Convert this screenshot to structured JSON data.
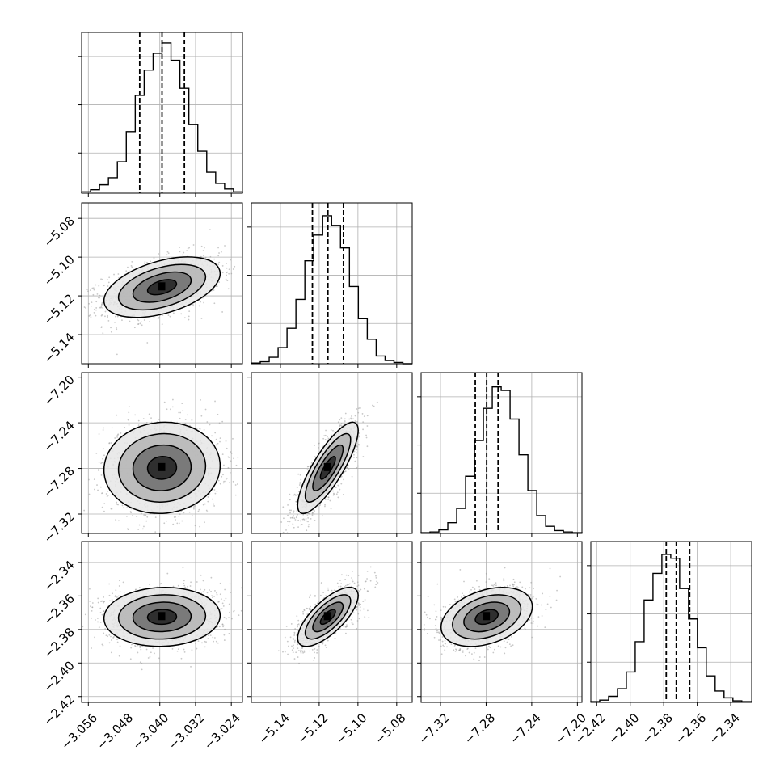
{
  "chart_data": {
    "type": "corner",
    "parameters": [
      {
        "index": 0,
        "range": [
          -3.0575,
          -3.0215
        ],
        "ticks": [
          -3.056,
          -3.048,
          -3.04,
          -3.032,
          -3.024
        ],
        "tick_labels": [
          "−3.056",
          "−3.048",
          "−3.040",
          "−3.032",
          "−3.024"
        ],
        "quantiles": [
          -3.0445,
          -3.0395,
          -3.0345
        ],
        "hist_bin_edges": [
          -3.0575,
          -3.0555,
          -3.0535,
          -3.0515,
          -3.0495,
          -3.0475,
          -3.0455,
          -3.0435,
          -3.0415,
          -3.0395,
          -3.0375,
          -3.0355,
          -3.0335,
          -3.0315,
          -3.0295,
          -3.0275,
          -3.0255,
          -3.0235,
          -3.0215
        ],
        "hist_counts": [
          2,
          5,
          12,
          22,
          45,
          88,
          140,
          176,
          200,
          215,
          190,
          150,
          98,
          60,
          30,
          14,
          6,
          2
        ],
        "hist_ymax": 230
      },
      {
        "index": 1,
        "range": [
          -5.155,
          -5.072
        ],
        "ticks": [
          -5.14,
          -5.12,
          -5.1,
          -5.08
        ],
        "tick_labels": [
          "−5.14",
          "−5.12",
          "−5.10",
          "−5.08"
        ],
        "quantiles": [
          -5.1235,
          -5.1155,
          -5.1075
        ],
        "hist_bin_edges": [
          -5.155,
          -5.1504,
          -5.1458,
          -5.1412,
          -5.1366,
          -5.132,
          -5.1274,
          -5.1228,
          -5.1182,
          -5.1136,
          -5.109,
          -5.1044,
          -5.0998,
          -5.0952,
          -5.0906,
          -5.086,
          -5.0814,
          -5.0768,
          -5.072
        ],
        "hist_counts": [
          1,
          3,
          10,
          25,
          55,
          100,
          160,
          200,
          230,
          215,
          180,
          120,
          70,
          38,
          12,
          5,
          2,
          0
        ],
        "hist_ymax": 250
      },
      {
        "index": 2,
        "range": [
          -7.337,
          -7.196
        ],
        "ticks": [
          -7.32,
          -7.28,
          -7.24,
          -7.2
        ],
        "tick_labels": [
          "−7.32",
          "−7.28",
          "−7.24",
          "−7.20"
        ],
        "quantiles": [
          -7.2895,
          -7.2795,
          -7.2695
        ],
        "hist_bin_edges": [
          -7.337,
          -7.3292,
          -7.3214,
          -7.3136,
          -7.3058,
          -7.298,
          -7.2902,
          -7.2824,
          -7.2746,
          -7.2668,
          -7.259,
          -7.2512,
          -7.2434,
          -7.2356,
          -7.2278,
          -7.22,
          -7.2122,
          -7.2044,
          -7.196
        ],
        "hist_counts": [
          1,
          2,
          5,
          15,
          35,
          80,
          130,
          175,
          205,
          200,
          160,
          110,
          60,
          25,
          10,
          4,
          2,
          1
        ],
        "hist_ymax": 225
      },
      {
        "index": 3,
        "range": [
          -2.4235,
          -2.3275
        ],
        "ticks": [
          -2.42,
          -2.4,
          -2.38,
          -2.36,
          -2.34
        ],
        "tick_labels": [
          "−2.42",
          "−2.40",
          "−2.38",
          "−2.36",
          "−2.34"
        ],
        "quantiles": [
          -2.3785,
          -2.3725,
          -2.3645
        ],
        "hist_bin_edges": [
          -2.4235,
          -2.4182,
          -2.4129,
          -2.4076,
          -2.4023,
          -2.397,
          -2.3917,
          -2.3864,
          -2.3811,
          -2.3758,
          -2.3705,
          -2.3652,
          -2.3599,
          -2.3546,
          -2.3493,
          -2.344,
          -2.3387,
          -2.3334,
          -2.3275
        ],
        "hist_counts": [
          1,
          3,
          8,
          18,
          40,
          80,
          135,
          170,
          195,
          190,
          150,
          110,
          72,
          35,
          15,
          6,
          2,
          1
        ],
        "hist_ymax": 212
      }
    ],
    "pairs": [
      {
        "x_param": 0,
        "y_param": 1,
        "mean": [
          -3.0395,
          -5.1155
        ],
        "correlation": 0.45,
        "spread": [
          0.0065,
          0.0078
        ]
      },
      {
        "x_param": 0,
        "y_param": 2,
        "mean": [
          -3.0395,
          -7.2795
        ],
        "correlation": 0.05,
        "spread": [
          0.0065,
          0.02
        ]
      },
      {
        "x_param": 1,
        "y_param": 2,
        "mean": [
          -5.1155,
          -7.2795
        ],
        "correlation": 0.82,
        "spread": [
          0.0078,
          0.02
        ]
      },
      {
        "x_param": 0,
        "y_param": 3,
        "mean": [
          -3.0395,
          -2.3725
        ],
        "correlation": 0.05,
        "spread": [
          0.0065,
          0.0088
        ]
      },
      {
        "x_param": 1,
        "y_param": 3,
        "mean": [
          -5.1155,
          -2.3725
        ],
        "correlation": 0.72,
        "spread": [
          0.0078,
          0.0088
        ]
      },
      {
        "x_param": 2,
        "y_param": 3,
        "mean": [
          -7.2795,
          -2.3725
        ],
        "correlation": 0.35,
        "spread": [
          0.02,
          0.0088
        ]
      }
    ],
    "contour_levels_sigma": [
      0.5,
      1.0,
      1.5,
      2.0
    ],
    "grid": true,
    "histogram_style": "step",
    "quantile_line_style": "dashed",
    "colors": {
      "line": "#000000",
      "grid": "#b0b0b0",
      "points": "#9a9a9a"
    }
  }
}
